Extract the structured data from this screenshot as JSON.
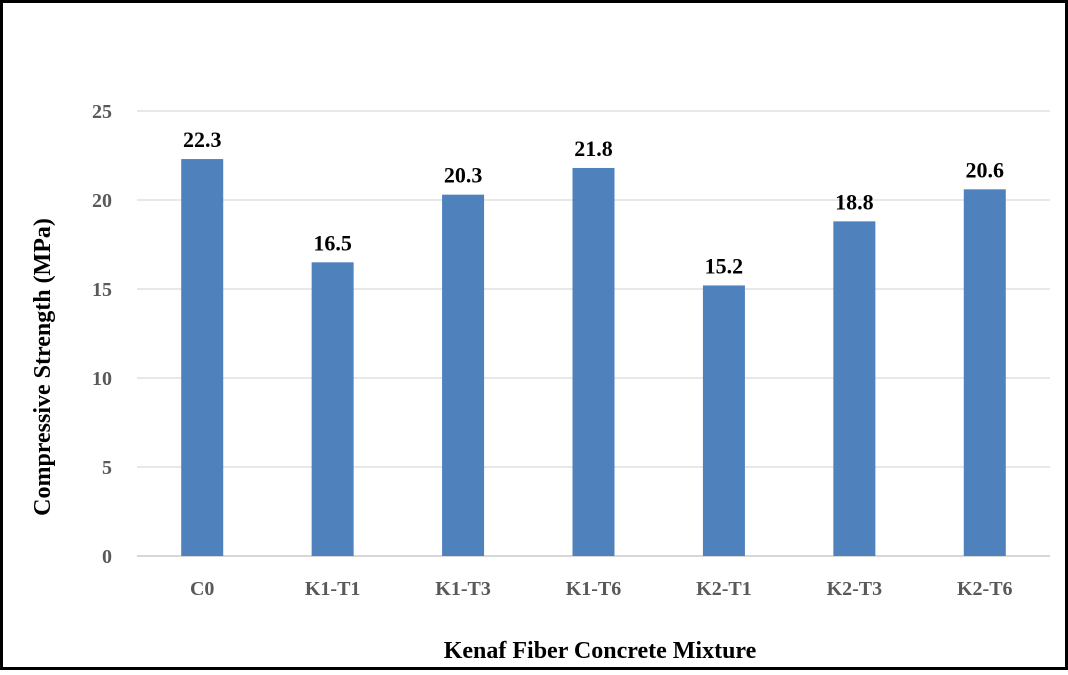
{
  "chart_data": {
    "type": "bar",
    "title": "",
    "xlabel": "Kenaf Fiber Concrete Mixture",
    "ylabel": "Compressive Strength (MPa)",
    "categories": [
      "C0",
      "K1-T1",
      "K1-T3",
      "K1-T6",
      "K2-T1",
      "K2-T3",
      "K2-T6"
    ],
    "series": [
      {
        "values": [
          22.3,
          16.5,
          20.3,
          21.8,
          15.2,
          18.8,
          20.6
        ]
      }
    ],
    "data_labels": [
      "22.3",
      "16.5",
      "20.3",
      "21.8",
      "15.2",
      "18.8",
      "20.6"
    ],
    "ylim": [
      0,
      25
    ],
    "yticks": [
      "0",
      "5",
      "10",
      "15",
      "20",
      "25"
    ],
    "grid": true,
    "legend": "none",
    "colors": {
      "bar": "#4F81BD",
      "grid": "#D9D9D9",
      "frame": "#000000"
    }
  }
}
